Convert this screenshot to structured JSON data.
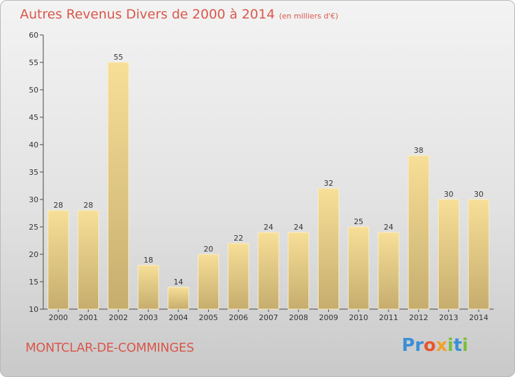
{
  "chart_data": {
    "type": "bar",
    "title": "Autres Revenus Divers de 2000 à 2014",
    "subtitle": "(en milliers d'€)",
    "categories": [
      "2000",
      "2001",
      "2002",
      "2003",
      "2004",
      "2005",
      "2006",
      "2007",
      "2008",
      "2009",
      "2010",
      "2011",
      "2012",
      "2013",
      "2014"
    ],
    "values": [
      28,
      28,
      55,
      18,
      14,
      20,
      22,
      24,
      24,
      32,
      25,
      24,
      38,
      30,
      30
    ],
    "ylim": [
      10,
      60
    ],
    "yticks": [
      10,
      15,
      20,
      25,
      30,
      35,
      40,
      45,
      50,
      55,
      60
    ],
    "grid": false,
    "bar_color_top": "#f7df98",
    "bar_color_bottom": "#c6ad6e"
  },
  "footer": {
    "commune": "MONTCLAR-DE-COMMINGES",
    "brand_letters": [
      "P",
      "r",
      "o",
      "x",
      "i",
      "t",
      "i"
    ],
    "brand_colors": [
      "#3b8fd6",
      "#3b8fd6",
      "#e8542f",
      "#f0a22a",
      "#7bbf3a",
      "#3b8fd6",
      "#7bbf3a"
    ]
  }
}
